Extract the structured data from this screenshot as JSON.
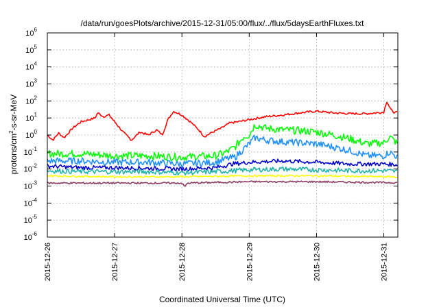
{
  "chart_data": {
    "type": "line",
    "title": "/data/run/goesPlots/archive/2015-12-31/05:00/flux/../flux/5daysEarthFluxes.txt",
    "xlabel": "Coordinated Universal Time (UTC)",
    "ylabel": "protons/cm²-s-sr-MeV",
    "ylabel_parts": {
      "pre": "protons/cm",
      "sup": "2",
      "post": "-s-sr-MeV"
    },
    "x_tick_labels": [
      "2015-12-26",
      "2015-12-27",
      "2015-12-28",
      "2015-12-29",
      "2015-12-30",
      "2015-12-31"
    ],
    "xlim": [
      "2015-12-26T00:00",
      "2015-12-31T05:00"
    ],
    "y_scale": "log",
    "ylim": [
      1e-06,
      1000000.0
    ],
    "y_ticks": [
      {
        "base": "10",
        "exp": "-6"
      },
      {
        "base": "10",
        "exp": "-5"
      },
      {
        "base": "10",
        "exp": "-4"
      },
      {
        "base": "10",
        "exp": "-3"
      },
      {
        "base": "10",
        "exp": "-2"
      },
      {
        "base": "10",
        "exp": "-1"
      },
      {
        "base": "10",
        "exp": "0"
      },
      {
        "base": "10",
        "exp": "1"
      },
      {
        "base": "10",
        "exp": "2"
      },
      {
        "base": "10",
        "exp": "3"
      },
      {
        "base": "10",
        "exp": "4"
      },
      {
        "base": "10",
        "exp": "5"
      },
      {
        "base": "10",
        "exp": "6"
      }
    ],
    "grid": true,
    "series": [
      {
        "color": "#ff0000",
        "points": [
          [
            "2015-12-26T00:00",
            1.0
          ],
          [
            "2015-12-26T02:00",
            0.5
          ],
          [
            "2015-12-26T04:00",
            1.3
          ],
          [
            "2015-12-26T06:00",
            0.7
          ],
          [
            "2015-12-26T09:00",
            2.5
          ],
          [
            "2015-12-26T12:00",
            6
          ],
          [
            "2015-12-26T15:00",
            8
          ],
          [
            "2015-12-26T17:00",
            10
          ],
          [
            "2015-12-26T18:00",
            20
          ],
          [
            "2015-12-26T20:00",
            12
          ],
          [
            "2015-12-26T22:00",
            15
          ],
          [
            "2015-12-27T00:00",
            6
          ],
          [
            "2015-12-27T03:00",
            1.5
          ],
          [
            "2015-12-27T06:00",
            0.5
          ],
          [
            "2015-12-27T09:00",
            1.5
          ],
          [
            "2015-12-27T12:00",
            1.0
          ],
          [
            "2015-12-27T15:00",
            2.0
          ],
          [
            "2015-12-27T17:00",
            1.0
          ],
          [
            "2015-12-27T19:00",
            8
          ],
          [
            "2015-12-27T21:00",
            25
          ],
          [
            "2015-12-28T00:00",
            15
          ],
          [
            "2015-12-28T03:00",
            6
          ],
          [
            "2015-12-28T06:00",
            2
          ],
          [
            "2015-12-28T08:00",
            0.8
          ],
          [
            "2015-12-28T11:00",
            1.5
          ],
          [
            "2015-12-28T14:00",
            2.5
          ],
          [
            "2015-12-28T17:00",
            5
          ],
          [
            "2015-12-28T20:00",
            6
          ],
          [
            "2015-12-29T00:00",
            8
          ],
          [
            "2015-12-29T06:00",
            12
          ],
          [
            "2015-12-29T12:00",
            15
          ],
          [
            "2015-12-29T18:00",
            20
          ],
          [
            "2015-12-30T00:00",
            25
          ],
          [
            "2015-12-30T06:00",
            20
          ],
          [
            "2015-12-30T12:00",
            18
          ],
          [
            "2015-12-30T18:00",
            18
          ],
          [
            "2015-12-31T00:00",
            22
          ],
          [
            "2015-12-31T01:00",
            100
          ],
          [
            "2015-12-31T02:30",
            30
          ],
          [
            "2015-12-31T04:00",
            20
          ],
          [
            "2015-12-31T05:00",
            22
          ]
        ]
      },
      {
        "color": "#00ff00",
        "points": [
          [
            "2015-12-26T00:00",
            0.08
          ],
          [
            "2015-12-26T12:00",
            0.08
          ],
          [
            "2015-12-27T00:00",
            0.06
          ],
          [
            "2015-12-27T12:00",
            0.06
          ],
          [
            "2015-12-28T00:00",
            0.05
          ],
          [
            "2015-12-28T12:00",
            0.06
          ],
          [
            "2015-12-28T16:00",
            0.1
          ],
          [
            "2015-12-28T19:00",
            0.2
          ],
          [
            "2015-12-28T22:00",
            0.8
          ],
          [
            "2015-12-29T00:00",
            1.0
          ],
          [
            "2015-12-29T02:00",
            4
          ],
          [
            "2015-12-29T06:00",
            2.5
          ],
          [
            "2015-12-29T12:00",
            2.0
          ],
          [
            "2015-12-29T18:00",
            1.8
          ],
          [
            "2015-12-30T00:00",
            1.5
          ],
          [
            "2015-12-30T06:00",
            1.0
          ],
          [
            "2015-12-30T12:00",
            0.6
          ],
          [
            "2015-12-30T18:00",
            0.3
          ],
          [
            "2015-12-31T00:00",
            0.35
          ],
          [
            "2015-12-31T02:00",
            0.8
          ],
          [
            "2015-12-31T05:00",
            0.3
          ]
        ]
      },
      {
        "color": "#1e90ff",
        "points": [
          [
            "2015-12-26T00:00",
            0.03
          ],
          [
            "2015-12-26T12:00",
            0.03
          ],
          [
            "2015-12-27T00:00",
            0.025
          ],
          [
            "2015-12-27T12:00",
            0.025
          ],
          [
            "2015-12-28T00:00",
            0.02
          ],
          [
            "2015-12-28T12:00",
            0.025
          ],
          [
            "2015-12-28T16:00",
            0.04
          ],
          [
            "2015-12-28T19:00",
            0.05
          ],
          [
            "2015-12-28T22:00",
            0.15
          ],
          [
            "2015-12-29T00:00",
            0.3
          ],
          [
            "2015-12-29T02:00",
            0.7
          ],
          [
            "2015-12-29T06:00",
            0.5
          ],
          [
            "2015-12-29T12:00",
            0.4
          ],
          [
            "2015-12-29T18:00",
            0.35
          ],
          [
            "2015-12-30T00:00",
            0.3
          ],
          [
            "2015-12-30T06:00",
            0.2
          ],
          [
            "2015-12-30T12:00",
            0.12
          ],
          [
            "2015-12-30T18:00",
            0.06
          ],
          [
            "2015-12-31T00:00",
            0.06
          ],
          [
            "2015-12-31T02:00",
            0.1
          ],
          [
            "2015-12-31T05:00",
            0.05
          ]
        ]
      },
      {
        "color": "#0000cd",
        "points": [
          [
            "2015-12-26T00:00",
            0.015
          ],
          [
            "2015-12-26T12:00",
            0.012
          ],
          [
            "2015-12-27T00:00",
            0.012
          ],
          [
            "2015-12-27T12:00",
            0.011
          ],
          [
            "2015-12-28T00:00",
            0.01
          ],
          [
            "2015-12-28T12:00",
            0.012
          ],
          [
            "2015-12-28T18:00",
            0.02
          ],
          [
            "2015-12-29T00:00",
            0.025
          ],
          [
            "2015-12-29T12:00",
            0.03
          ],
          [
            "2015-12-30T00:00",
            0.025
          ],
          [
            "2015-12-30T12:00",
            0.02
          ],
          [
            "2015-12-31T00:00",
            0.02
          ],
          [
            "2015-12-31T05:00",
            0.018
          ]
        ]
      },
      {
        "color": "#20b2aa",
        "points": [
          [
            "2015-12-26T00:00",
            0.008
          ],
          [
            "2015-12-26T12:00",
            0.007
          ],
          [
            "2015-12-27T00:00",
            0.007
          ],
          [
            "2015-12-27T12:00",
            0.007
          ],
          [
            "2015-12-28T00:00",
            0.006
          ],
          [
            "2015-12-28T12:00",
            0.007
          ],
          [
            "2015-12-29T00:00",
            0.009
          ],
          [
            "2015-12-29T12:00",
            0.01
          ],
          [
            "2015-12-30T00:00",
            0.009
          ],
          [
            "2015-12-30T12:00",
            0.008
          ],
          [
            "2015-12-31T00:00",
            0.008
          ],
          [
            "2015-12-31T05:00",
            0.007
          ]
        ]
      },
      {
        "color": "#ffff00",
        "points": [
          [
            "2015-12-26T00:00",
            0.004
          ],
          [
            "2015-12-27T00:00",
            0.0035
          ],
          [
            "2015-12-28T00:00",
            0.0035
          ],
          [
            "2015-12-29T00:00",
            0.004
          ],
          [
            "2015-12-30T00:00",
            0.004
          ],
          [
            "2015-12-31T00:00",
            0.0035
          ],
          [
            "2015-12-31T05:00",
            0.0035
          ]
        ]
      },
      {
        "color": "#8b3a62",
        "points": [
          [
            "2015-12-26T00:00",
            0.0015
          ],
          [
            "2015-12-27T00:00",
            0.0015
          ],
          [
            "2015-12-28T00:00",
            0.0015
          ],
          [
            "2015-12-28T01:00",
            0.0009
          ],
          [
            "2015-12-28T02:00",
            0.0015
          ],
          [
            "2015-12-29T00:00",
            0.0018
          ],
          [
            "2015-12-30T00:00",
            0.0018
          ],
          [
            "2015-12-31T00:00",
            0.0016
          ],
          [
            "2015-12-31T05:00",
            0.0016
          ]
        ]
      }
    ]
  }
}
